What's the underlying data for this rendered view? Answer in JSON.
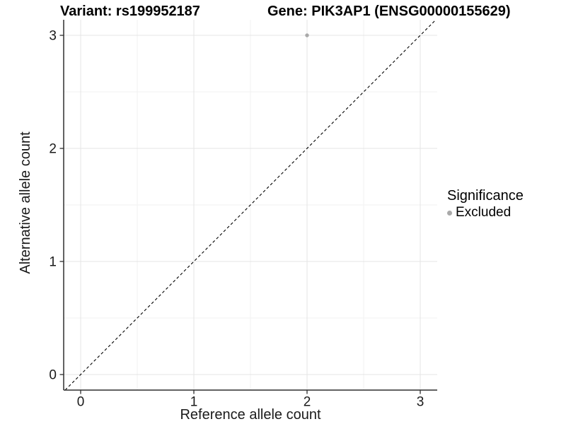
{
  "header": {
    "variant_title": "Variant: rs199952187",
    "gene_title": "Gene: PIK3AP1 (ENSG00000155629)"
  },
  "legend": {
    "title": "Significance",
    "items": [
      {
        "label": "Excluded",
        "color": "#a9a9a9"
      }
    ]
  },
  "chart_data": {
    "type": "scatter",
    "title_left": "Variant: rs199952187",
    "title_right": "Gene: PIK3AP1 (ENSG00000155629)",
    "xlabel": "Reference allele count",
    "ylabel": "Alternative allele count",
    "xlim": [
      -0.15,
      3.15
    ],
    "ylim": [
      -0.1375,
      3.1375
    ],
    "x_ticks": [
      0,
      1,
      2,
      3
    ],
    "y_ticks": [
      0,
      1,
      2,
      3
    ],
    "x_minor_ticks": [
      0.5,
      1.5,
      2.5
    ],
    "y_minor_ticks": [
      0.5,
      1.5,
      2.5
    ],
    "grid": "major and minor horizontal+vertical, light gray, white panel",
    "legend_title": "Significance",
    "legend_position": "right",
    "series": [
      {
        "name": "Excluded",
        "color": "#a9a9a9",
        "marker": "circle",
        "points": [
          {
            "x": 2,
            "y": 3
          }
        ]
      }
    ],
    "reference_line": {
      "kind": "identity (y = x)",
      "style": "dashed",
      "color": "#000000"
    }
  }
}
